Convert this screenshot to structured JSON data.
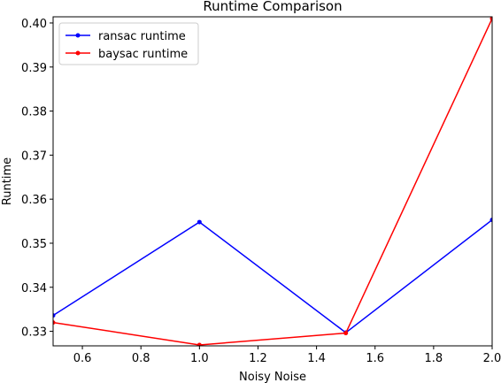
{
  "chart_data": {
    "type": "line",
    "title": "Runtime Comparison",
    "xlabel": "Noisy Noise",
    "ylabel": "Runtime",
    "x": [
      0.5,
      1.0,
      1.5,
      2.0
    ],
    "xlim": [
      0.5,
      2.0
    ],
    "ylim": [
      0.3267,
      0.4014
    ],
    "xticks": [
      0.6,
      0.8,
      1.0,
      1.2,
      1.4,
      1.6,
      1.8,
      2.0
    ],
    "xtick_labels": [
      "0.6",
      "0.8",
      "1.0",
      "1.2",
      "1.4",
      "1.6",
      "1.8",
      "2.0"
    ],
    "yticks": [
      0.33,
      0.34,
      0.35,
      0.36,
      0.37,
      0.38,
      0.39,
      0.4
    ],
    "ytick_labels": [
      "0.33",
      "0.34",
      "0.35",
      "0.36",
      "0.37",
      "0.38",
      "0.39",
      "0.40"
    ],
    "grid": false,
    "legend_position": "top-left",
    "series": [
      {
        "name": "ransac runtime",
        "color": "#0000ff",
        "values": [
          0.3336,
          0.3548,
          0.3297,
          0.3553
        ]
      },
      {
        "name": "baysac runtime",
        "color": "#ff0000",
        "values": [
          0.332,
          0.3269,
          0.3296,
          0.401
        ]
      }
    ]
  }
}
